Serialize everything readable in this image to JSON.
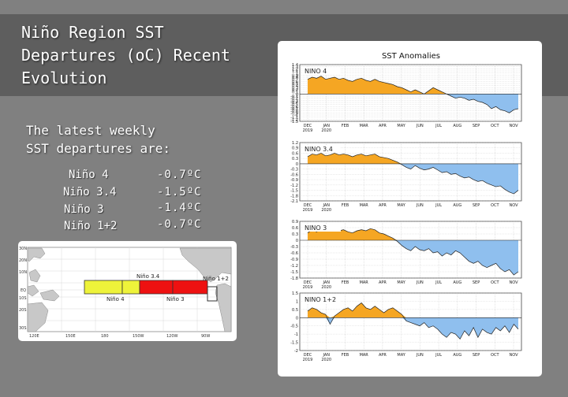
{
  "slide": {
    "title_lines": [
      "Niño Region SST",
      "Departures (oC) Recent",
      "Evolution"
    ],
    "subtitle_lines": [
      "The latest weekly",
      "SST departures are:"
    ],
    "regions": [
      {
        "name": "Niño 4",
        "value": "-0.7ºC"
      },
      {
        "name": "Niño 3.4",
        "value": "-1.5ºC"
      },
      {
        "name": "Niño 3",
        "value": "-1.4ºC"
      },
      {
        "name": "Niño 1+2",
        "value": "-0.7ºC"
      }
    ]
  },
  "map": {
    "lat_labels": [
      "30N",
      "20N",
      "10N",
      "EQ",
      "10S",
      "20S",
      "30S"
    ],
    "lon_labels": [
      "120E",
      "150E",
      "180",
      "150W",
      "120W",
      "90W"
    ],
    "box_labels": {
      "nino4": "Niño 4",
      "nino34": "Niño 3.4",
      "nino3": "Niño 3",
      "nino12": "Niño 1+2"
    },
    "colors": {
      "nino4": "#eef33a",
      "nino3": "#ee1111",
      "land": "#c8c8c8"
    }
  },
  "chart_data": {
    "type": "area",
    "title": "SST Anomalies",
    "x_ticks": [
      {
        "line1": "DEC",
        "line2": "2019"
      },
      {
        "line1": "JAN",
        "line2": "2020"
      },
      {
        "line1": "FEB",
        "line2": ""
      },
      {
        "line1": "MAR",
        "line2": ""
      },
      {
        "line1": "APR",
        "line2": ""
      },
      {
        "line1": "MAY",
        "line2": ""
      },
      {
        "line1": "JUN",
        "line2": ""
      },
      {
        "line1": "JUL",
        "line2": ""
      },
      {
        "line1": "AUG",
        "line2": ""
      },
      {
        "line1": "SEP",
        "line2": ""
      },
      {
        "line1": "OCT",
        "line2": ""
      },
      {
        "line1": "NOV",
        "line2": ""
      }
    ],
    "colors": {
      "positive": "#f5a623",
      "negative": "#8fbfee",
      "grid": "#bbbbbb"
    },
    "panels": [
      {
        "label": "NINO 4",
        "ylim": [
          -1.3,
          1.4
        ],
        "yticks": [
          "1.4",
          "1.3",
          "1.2",
          "1.1",
          "1",
          "0.9",
          "0.8",
          "0.7",
          "0.6",
          "0.5",
          "0.4",
          "0.3",
          "0.2",
          "0.1",
          "0",
          "-0.1",
          "-0.2",
          "-0.3",
          "-0.4",
          "-0.5",
          "-0.6",
          "-0.7",
          "-0.8",
          "-0.9",
          "-1",
          "-1.1",
          "-1.2",
          "-1.3"
        ],
        "values": [
          0.7,
          0.8,
          0.75,
          0.85,
          0.7,
          0.75,
          0.8,
          0.7,
          0.75,
          0.65,
          0.6,
          0.7,
          0.75,
          0.65,
          0.6,
          0.7,
          0.6,
          0.55,
          0.5,
          0.45,
          0.35,
          0.3,
          0.2,
          0.1,
          0.2,
          0.1,
          0.0,
          0.15,
          0.3,
          0.2,
          0.1,
          0.0,
          -0.1,
          -0.2,
          -0.15,
          -0.2,
          -0.3,
          -0.25,
          -0.35,
          -0.4,
          -0.5,
          -0.7,
          -0.6,
          -0.75,
          -0.8,
          -0.9,
          -0.75,
          -0.7
        ]
      },
      {
        "label": "NINO 3.4",
        "ylim": [
          -2.1,
          1.2
        ],
        "yticks": [
          "1.2",
          "0.9",
          "0.6",
          "0.3",
          "0",
          "-0.3",
          "-0.6",
          "-0.9",
          "-1.2",
          "-1.5",
          "-1.8",
          "-2.1"
        ],
        "values": [
          0.4,
          0.55,
          0.5,
          0.6,
          0.45,
          0.5,
          0.6,
          0.5,
          0.55,
          0.5,
          0.4,
          0.5,
          0.55,
          0.45,
          0.5,
          0.55,
          0.4,
          0.35,
          0.3,
          0.2,
          0.1,
          -0.05,
          -0.2,
          -0.3,
          -0.1,
          -0.25,
          -0.35,
          -0.3,
          -0.2,
          -0.35,
          -0.5,
          -0.45,
          -0.6,
          -0.55,
          -0.7,
          -0.8,
          -0.75,
          -0.9,
          -1.0,
          -0.95,
          -1.1,
          -1.2,
          -1.3,
          -1.25,
          -1.45,
          -1.6,
          -1.7,
          -1.5
        ]
      },
      {
        "label": "NINO 3",
        "ylim": [
          -1.8,
          0.9
        ],
        "yticks": [
          "0.9",
          "0.6",
          "0.3",
          "0",
          "-0.3",
          "-0.6",
          "-0.9",
          "-1.2",
          "-1.5",
          "-1.8"
        ],
        "values": [
          0.35,
          0.5,
          0.4,
          0.55,
          0.45,
          0.5,
          0.6,
          0.45,
          0.5,
          0.4,
          0.35,
          0.45,
          0.5,
          0.45,
          0.55,
          0.5,
          0.35,
          0.3,
          0.2,
          0.1,
          -0.05,
          -0.25,
          -0.4,
          -0.5,
          -0.3,
          -0.45,
          -0.5,
          -0.4,
          -0.6,
          -0.55,
          -0.75,
          -0.6,
          -0.7,
          -0.5,
          -0.6,
          -0.8,
          -1.0,
          -1.1,
          -1.0,
          -1.2,
          -1.3,
          -1.2,
          -1.1,
          -1.35,
          -1.5,
          -1.4,
          -1.65,
          -1.5
        ]
      },
      {
        "label": "NINO 1+2",
        "ylim": [
          -2.0,
          1.5
        ],
        "yticks": [
          "1.5",
          "1",
          "0.5",
          "0",
          "-0.5",
          "-1",
          "-1.5",
          "-2"
        ],
        "values": [
          0.4,
          0.6,
          0.5,
          0.3,
          0.2,
          -0.4,
          0.1,
          0.3,
          0.5,
          0.6,
          0.4,
          0.7,
          0.9,
          0.6,
          0.5,
          0.7,
          0.5,
          0.3,
          0.5,
          0.6,
          0.4,
          0.2,
          -0.2,
          -0.3,
          -0.4,
          -0.5,
          -0.3,
          -0.6,
          -0.5,
          -0.7,
          -1.0,
          -1.2,
          -0.9,
          -1.0,
          -1.3,
          -0.8,
          -1.1,
          -0.6,
          -1.2,
          -0.7,
          -0.9,
          -1.0,
          -0.6,
          -0.8,
          -0.5,
          -0.9,
          -0.4,
          -0.7
        ]
      }
    ]
  }
}
